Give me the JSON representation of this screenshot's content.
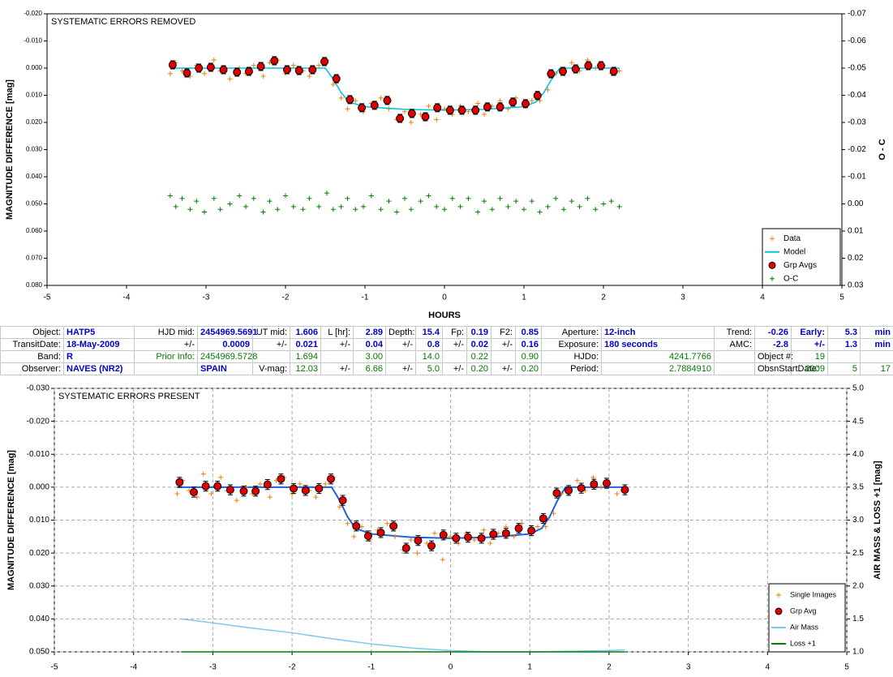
{
  "chart_data": [
    {
      "type": "scatter",
      "annotation": "SYSTEMATIC ERRORS REMOVED",
      "xlabel": "HOURS",
      "ylabel": "MAGNITUDE DIFFERENCE [mag]",
      "y2label": "O - C",
      "xlim": [
        -5,
        5
      ],
      "xticks": [
        -5,
        -4,
        -3,
        -2,
        -1,
        0,
        1,
        2,
        3,
        4,
        5
      ],
      "ylim": [
        -0.02,
        0.08
      ],
      "y_inverted": true,
      "yticks": [
        {
          "value": -0.02,
          "label": "-0.020"
        },
        {
          "value": -0.01,
          "label": "-0.010"
        },
        {
          "value": 0,
          "label": "0.000"
        },
        {
          "value": 0.01,
          "label": "0.010"
        },
        {
          "value": 0.02,
          "label": "0.020"
        },
        {
          "value": 0.03,
          "label": "0.030"
        },
        {
          "value": 0.04,
          "label": "0.040"
        },
        {
          "value": 0.05,
          "label": "0.050"
        },
        {
          "value": 0.06,
          "label": "0.060"
        },
        {
          "value": 0.07,
          "label": "0.070"
        },
        {
          "value": 0.08,
          "label": "0.080"
        }
      ],
      "y2lim": [
        -0.07,
        0.03
      ],
      "y2_inverted": true,
      "y2ticks": [
        {
          "value": -0.07,
          "label": "-0.07"
        },
        {
          "value": -0.06,
          "label": "-0.06"
        },
        {
          "value": -0.05,
          "label": "-0.05"
        },
        {
          "value": -0.04,
          "label": "-0.04"
        },
        {
          "value": -0.03,
          "label": "-0.03"
        },
        {
          "value": -0.02,
          "label": "-0.02"
        },
        {
          "value": -0.01,
          "label": "-0.01"
        },
        {
          "value": 0,
          "label": "0.00"
        },
        {
          "value": 0.01,
          "label": "0.01"
        },
        {
          "value": 0.02,
          "label": "0.02"
        },
        {
          "value": 0.03,
          "label": "0.03"
        }
      ],
      "grid": false,
      "legend": "lower right",
      "series": [
        {
          "name": "Data",
          "color": "#f08000",
          "marker": "+",
          "x": [
            -3.45,
            -3.38,
            -3.3,
            -3.2,
            -3.12,
            -3.02,
            -2.9,
            -2.82,
            -2.7,
            -2.58,
            -2.5,
            -2.4,
            -2.28,
            -2.2,
            -2.1,
            -2.0,
            -1.9,
            -1.78,
            -1.7,
            -1.58,
            -1.48,
            -1.4,
            -1.3,
            -1.22,
            -1.12,
            -1.02,
            -0.92,
            -0.8,
            -0.7,
            -0.6,
            -0.5,
            -0.42,
            -0.3,
            -0.2,
            -0.1,
            0.0,
            0.1,
            0.2,
            0.3,
            0.42,
            0.5,
            0.6,
            0.7,
            0.8,
            0.9,
            1.0,
            1.1,
            1.2,
            1.3,
            1.4,
            1.5,
            1.6,
            1.7,
            1.8,
            1.9,
            2.0,
            2.1,
            2.2
          ],
          "values": [
            0.002,
            -0.002,
            0.001,
            0.003,
            -0.001,
            0.002,
            -0.003,
            0.001,
            0.004,
            0.0,
            0.002,
            -0.001,
            0.003,
            -0.002,
            -0.003,
            0.002,
            -0.001,
            0.001,
            0.003,
            -0.001,
            -0.003,
            0.006,
            0.011,
            0.015,
            0.012,
            0.016,
            0.013,
            0.011,
            0.015,
            0.019,
            0.016,
            0.02,
            0.017,
            0.014,
            0.019,
            0.015,
            0.017,
            0.014,
            0.016,
            0.013,
            0.017,
            0.014,
            0.012,
            0.015,
            0.011,
            0.014,
            0.012,
            0.012,
            0.008,
            0.002,
            0.001,
            -0.002,
            0.001,
            -0.003,
            0.0,
            -0.001,
            0.002,
            0.001
          ]
        },
        {
          "name": "Model",
          "color": "#00c0e8",
          "marker": "line",
          "x": [
            -3.45,
            -1.5,
            -1.4,
            -1.3,
            -1.2,
            -1.0,
            -0.5,
            0,
            0.5,
            1.0,
            1.15,
            1.25,
            1.35,
            1.45,
            2.2
          ],
          "values": [
            0,
            0,
            0.004,
            0.009,
            0.0125,
            0.0142,
            0.0152,
            0.0155,
            0.0152,
            0.0142,
            0.0125,
            0.009,
            0.004,
            0,
            0
          ]
        },
        {
          "name": "Grp Avgs",
          "color": "#e00000",
          "marker": "o",
          "error": 0.0015,
          "x": [
            -3.42,
            -3.24,
            -3.09,
            -2.94,
            -2.78,
            -2.61,
            -2.46,
            -2.31,
            -2.14,
            -1.98,
            -1.83,
            -1.66,
            -1.51,
            -1.36,
            -1.19,
            -1.04,
            -0.88,
            -0.72,
            -0.56,
            -0.41,
            -0.24,
            -0.09,
            0.07,
            0.22,
            0.39,
            0.54,
            0.7,
            0.86,
            1.02,
            1.17,
            1.34,
            1.49,
            1.65,
            1.81,
            1.97,
            2.13
          ],
          "values": [
            -0.0012,
            0.0018,
            0.0,
            -0.0003,
            0.0006,
            0.0015,
            0.0012,
            -0.0006,
            -0.0027,
            0.0006,
            0.0009,
            0.0006,
            -0.0024,
            0.0039,
            0.0116,
            0.0146,
            0.0137,
            0.0119,
            0.0185,
            0.0167,
            0.0179,
            0.0146,
            0.0155,
            0.0155,
            0.0155,
            0.0143,
            0.0143,
            0.0125,
            0.0131,
            0.0101,
            0.0021,
            0.0012,
            0.0003,
            -0.0009,
            -0.0009,
            0.0012
          ]
        },
        {
          "name": "O-C",
          "color": "#008000",
          "marker": "+",
          "axis": "y2",
          "x": [
            -3.45,
            -3.38,
            -3.3,
            -3.2,
            -3.12,
            -3.02,
            -2.9,
            -2.82,
            -2.7,
            -2.58,
            -2.5,
            -2.4,
            -2.28,
            -2.2,
            -2.1,
            -2.0,
            -1.9,
            -1.78,
            -1.7,
            -1.58,
            -1.48,
            -1.4,
            -1.3,
            -1.22,
            -1.12,
            -1.02,
            -0.92,
            -0.8,
            -0.7,
            -0.6,
            -0.5,
            -0.42,
            -0.3,
            -0.2,
            -0.1,
            0.0,
            0.1,
            0.2,
            0.3,
            0.42,
            0.5,
            0.6,
            0.7,
            0.8,
            0.9,
            1.0,
            1.1,
            1.2,
            1.3,
            1.4,
            1.5,
            1.6,
            1.7,
            1.8,
            1.9,
            2.0,
            2.1,
            2.2
          ],
          "values": [
            -0.003,
            0.001,
            -0.002,
            0.002,
            -0.001,
            0.003,
            -0.002,
            0.002,
            0.0,
            -0.003,
            0.001,
            -0.002,
            0.003,
            -0.001,
            0.002,
            -0.003,
            0.001,
            0.002,
            -0.002,
            0.001,
            -0.004,
            0.002,
            0.001,
            -0.002,
            0.002,
            0.001,
            -0.003,
            0.002,
            -0.001,
            0.003,
            -0.002,
            0.002,
            -0.001,
            -0.003,
            0.001,
            0.002,
            -0.002,
            0.001,
            -0.002,
            0.003,
            -0.001,
            0.002,
            -0.002,
            0.001,
            -0.001,
            0.002,
            -0.001,
            0.003,
            0.001,
            -0.002,
            0.002,
            -0.001,
            0.001,
            -0.002,
            0.002,
            0.0,
            -0.001,
            0.001
          ]
        }
      ]
    },
    {
      "type": "scatter",
      "annotation": "SYSTEMATIC ERRORS PRESENT",
      "ylabel": "MAGNITUDE DIFFERENCE [mag]",
      "y2label": "AIR MASS & LOSS +1 [mag]",
      "xlim": [
        -5,
        5
      ],
      "xticks": [
        -5,
        -4,
        -3,
        -2,
        -1,
        0,
        1,
        2,
        3,
        4,
        5
      ],
      "ylim": [
        -0.03,
        0.05
      ],
      "y_inverted": true,
      "yticks": [
        {
          "value": -0.03,
          "label": "-0.030"
        },
        {
          "value": -0.02,
          "label": "-0.020"
        },
        {
          "value": -0.01,
          "label": "-0.010"
        },
        {
          "value": 0,
          "label": "0.000"
        },
        {
          "value": 0.01,
          "label": "0.010"
        },
        {
          "value": 0.02,
          "label": "0.020"
        },
        {
          "value": 0.03,
          "label": "0.030"
        },
        {
          "value": 0.04,
          "label": "0.040"
        },
        {
          "value": 0.05,
          "label": "0.050"
        }
      ],
      "y2lim": [
        1,
        5
      ],
      "y2_inverted": false,
      "y2ticks": [
        {
          "value": 1,
          "label": "1.0"
        },
        {
          "value": 1.5,
          "label": "1.5"
        },
        {
          "value": 2,
          "label": "2.0"
        },
        {
          "value": 2.5,
          "label": "2.5"
        },
        {
          "value": 3,
          "label": "3.0"
        },
        {
          "value": 3.5,
          "label": "3.5"
        },
        {
          "value": 4,
          "label": "4.0"
        },
        {
          "value": 4.5,
          "label": "4.5"
        },
        {
          "value": 5,
          "label": "5.0"
        }
      ],
      "grid": true,
      "legend": "lower right",
      "model": {
        "color": "#2060e0",
        "x": [
          -3.45,
          -1.5,
          -1.4,
          -1.3,
          -1.2,
          -1.0,
          -0.5,
          0,
          0.5,
          1.0,
          1.15,
          1.25,
          1.35,
          1.45,
          2.2
        ],
        "values": [
          0,
          0,
          0.004,
          0.009,
          0.0125,
          0.0142,
          0.0152,
          0.0155,
          0.0152,
          0.0142,
          0.0125,
          0.009,
          0.004,
          0,
          0
        ]
      },
      "series": [
        {
          "name": "Single Images",
          "color": "#f08000",
          "marker": "+",
          "x": [
            -3.45,
            -3.38,
            -3.3,
            -3.2,
            -3.12,
            -3.02,
            -2.9,
            -2.82,
            -2.7,
            -2.58,
            -2.5,
            -2.4,
            -2.28,
            -2.2,
            -2.1,
            -2.0,
            -1.9,
            -1.78,
            -1.7,
            -1.58,
            -1.48,
            -1.4,
            -1.3,
            -1.22,
            -1.12,
            -1.02,
            -0.92,
            -0.8,
            -0.7,
            -0.6,
            -0.5,
            -0.42,
            -0.3,
            -0.2,
            -0.1,
            0.0,
            0.1,
            0.2,
            0.3,
            0.42,
            0.5,
            0.6,
            0.7,
            0.8,
            0.9,
            1.0,
            1.1,
            1.2,
            1.3,
            1.4,
            1.5,
            1.6,
            1.7,
            1.8,
            1.9,
            2.0,
            2.1,
            2.2
          ],
          "values": [
            0.002,
            -0.002,
            0.001,
            0.003,
            -0.004,
            0.002,
            -0.003,
            0.001,
            0.004,
            0.0,
            0.002,
            -0.001,
            0.003,
            -0.002,
            -0.003,
            0.002,
            -0.001,
            0.001,
            0.003,
            -0.001,
            -0.003,
            0.006,
            0.011,
            0.015,
            0.012,
            0.016,
            0.013,
            0.011,
            0.015,
            0.019,
            0.016,
            0.02,
            0.017,
            0.014,
            0.022,
            0.015,
            0.017,
            0.014,
            0.016,
            0.013,
            0.017,
            0.014,
            0.012,
            0.015,
            0.011,
            0.014,
            0.012,
            0.012,
            0.008,
            0.002,
            0.001,
            -0.002,
            0.001,
            -0.003,
            0.0,
            -0.001,
            0.002,
            0.001
          ]
        },
        {
          "name": "Grp Avg",
          "color": "#e00000",
          "marker": "o",
          "error": 0.0015,
          "x": [
            -3.42,
            -3.24,
            -3.09,
            -2.94,
            -2.78,
            -2.61,
            -2.46,
            -2.31,
            -2.14,
            -1.98,
            -1.83,
            -1.66,
            -1.51,
            -1.36,
            -1.19,
            -1.04,
            -0.88,
            -0.72,
            -0.56,
            -0.41,
            -0.24,
            -0.09,
            0.07,
            0.22,
            0.39,
            0.54,
            0.7,
            0.86,
            1.02,
            1.17,
            1.34,
            1.49,
            1.65,
            1.81,
            1.97,
            2.2
          ],
          "values": [
            -0.0015,
            0.0015,
            -0.0003,
            -0.0003,
            0.0008,
            0.0012,
            0.0012,
            -0.0008,
            -0.0025,
            0.0004,
            0.001,
            0.0004,
            -0.0025,
            0.004,
            0.0118,
            0.0148,
            0.0138,
            0.0118,
            0.0185,
            0.0162,
            0.0178,
            0.0145,
            0.0155,
            0.0152,
            0.0155,
            0.0143,
            0.014,
            0.0125,
            0.0132,
            0.0095,
            0.0018,
            0.001,
            0.0003,
            -0.0009,
            -0.0012,
            0.0008
          ]
        },
        {
          "name": "Air Mass",
          "color": "#7ec8f0",
          "marker": "line",
          "axis": "y2",
          "x": [
            -3.4,
            -3,
            -2.5,
            -2,
            -1.5,
            -1,
            -0.5,
            0,
            0.5,
            1,
            1.5,
            2,
            2.2
          ],
          "values": [
            1.5,
            1.44,
            1.36,
            1.29,
            1.2,
            1.12,
            1.06,
            1.02,
            1.0,
            1.0,
            1.01,
            1.02,
            1.03
          ]
        },
        {
          "name": "Loss +1",
          "color": "#008000",
          "marker": "line",
          "axis": "y2",
          "x": [
            -3.4,
            2.2
          ],
          "values": [
            1.0,
            1.0
          ]
        }
      ]
    }
  ],
  "table": {
    "rows": [
      [
        "Object:",
        "HATP5",
        "HJD mid:",
        "2454969.5691",
        "UT mid:",
        "1.606",
        "L [hr]:",
        "2.89",
        "Depth:",
        "15.4",
        "Fp:",
        "0.19",
        "F2:",
        "0.85",
        "Aperture:",
        "12-inch",
        "Trend:",
        "-0.26",
        "Early:",
        "5.3",
        "min"
      ],
      [
        "TransitDate:",
        "18-May-2009",
        "+/-",
        "0.0009",
        "+/-",
        "0.021",
        "+/-",
        "0.04",
        "+/-",
        "0.8",
        "+/-",
        "0.02",
        "+/-",
        "0.16",
        "Exposure:",
        "180 seconds",
        "AMC:",
        "-2.8",
        "+/-",
        "1.3",
        "min"
      ],
      [
        "Band:",
        "R",
        "Prior Info:",
        "2454969.5728",
        null,
        "1.694",
        null,
        "3.00",
        null,
        "14.0",
        null,
        "0.22",
        null,
        "0.90",
        "HJDo:",
        "4241.7766",
        null,
        "Object #:",
        "19",
        null,
        null
      ],
      [
        "Observer:",
        "NAVES (NR2)",
        null,
        "SPAIN",
        "V-mag:",
        "12.03",
        "+/-",
        "6.66",
        "+/-",
        "5.0",
        "+/-",
        "0.20",
        "+/-",
        "0.20",
        "Period:",
        "2.7884910",
        null,
        "ObsnStartDate:",
        "2009",
        "5",
        "17"
      ]
    ]
  }
}
